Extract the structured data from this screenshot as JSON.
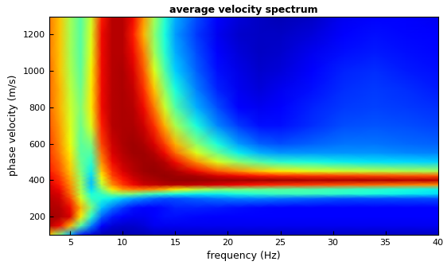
{
  "chart_data": {
    "type": "heatmap",
    "title": "average velocity spectrum",
    "x_label": "frequency (Hz)",
    "y_label": "phase velocity (m/s)",
    "color": "jet",
    "clim": [
      0,
      1
    ],
    "x": [
      3,
      4,
      5,
      6,
      7,
      8,
      9,
      10,
      11,
      12,
      13,
      14,
      15,
      17,
      19,
      21,
      23,
      25,
      28,
      31,
      34,
      37,
      40
    ],
    "y": [
      100,
      150,
      200,
      250,
      300,
      325,
      350,
      375,
      400,
      425,
      450,
      500,
      550,
      600,
      700,
      800,
      900,
      1000,
      1100,
      1200,
      1300
    ],
    "cells": [
      [
        0.7,
        0.5,
        0.3,
        0.15,
        0.08,
        0.05,
        0.04,
        0.04,
        0.05,
        0.05,
        0.06,
        0.06,
        0.06,
        0.06,
        0.06,
        0.06,
        0.06,
        0.06,
        0.06,
        0.06,
        0.06,
        0.06,
        0.06
      ],
      [
        0.95,
        0.9,
        0.72,
        0.45,
        0.25,
        0.12,
        0.08,
        0.07,
        0.07,
        0.08,
        0.1,
        0.1,
        0.1,
        0.1,
        0.1,
        0.1,
        0.1,
        0.1,
        0.1,
        0.1,
        0.1,
        0.1,
        0.1
      ],
      [
        0.97,
        0.96,
        0.92,
        0.66,
        0.4,
        0.22,
        0.15,
        0.12,
        0.1,
        0.1,
        0.12,
        0.14,
        0.14,
        0.13,
        0.12,
        0.12,
        0.12,
        0.12,
        0.12,
        0.12,
        0.12,
        0.12,
        0.12
      ],
      [
        0.96,
        0.95,
        0.9,
        0.72,
        0.5,
        0.32,
        0.24,
        0.18,
        0.14,
        0.12,
        0.12,
        0.14,
        0.16,
        0.16,
        0.15,
        0.14,
        0.13,
        0.12,
        0.12,
        0.12,
        0.12,
        0.12,
        0.12
      ],
      [
        0.95,
        0.93,
        0.84,
        0.62,
        0.42,
        0.38,
        0.36,
        0.32,
        0.28,
        0.25,
        0.22,
        0.2,
        0.2,
        0.22,
        0.24,
        0.25,
        0.25,
        0.24,
        0.22,
        0.2,
        0.2,
        0.2,
        0.2
      ],
      [
        0.94,
        0.92,
        0.8,
        0.58,
        0.38,
        0.42,
        0.5,
        0.52,
        0.5,
        0.45,
        0.42,
        0.4,
        0.38,
        0.36,
        0.36,
        0.38,
        0.4,
        0.42,
        0.42,
        0.4,
        0.38,
        0.36,
        0.34
      ],
      [
        0.93,
        0.9,
        0.78,
        0.56,
        0.34,
        0.5,
        0.66,
        0.75,
        0.78,
        0.78,
        0.76,
        0.72,
        0.66,
        0.58,
        0.52,
        0.5,
        0.48,
        0.46,
        0.44,
        0.42,
        0.4,
        0.38,
        0.36
      ],
      [
        0.92,
        0.88,
        0.76,
        0.55,
        0.32,
        0.58,
        0.76,
        0.85,
        0.9,
        0.93,
        0.94,
        0.95,
        0.95,
        0.94,
        0.92,
        0.9,
        0.88,
        0.86,
        0.84,
        0.82,
        0.8,
        0.78,
        0.76
      ],
      [
        0.9,
        0.86,
        0.74,
        0.54,
        0.32,
        0.62,
        0.8,
        0.88,
        0.92,
        0.95,
        0.96,
        0.97,
        0.98,
        0.98,
        0.97,
        0.97,
        0.97,
        0.97,
        0.96,
        0.96,
        0.96,
        0.95,
        0.95
      ],
      [
        0.9,
        0.84,
        0.72,
        0.52,
        0.34,
        0.66,
        0.84,
        0.9,
        0.94,
        0.96,
        0.97,
        0.98,
        0.97,
        0.96,
        0.92,
        0.9,
        0.88,
        0.86,
        0.85,
        0.84,
        0.83,
        0.82,
        0.82
      ],
      [
        0.88,
        0.82,
        0.7,
        0.5,
        0.36,
        0.7,
        0.86,
        0.92,
        0.95,
        0.97,
        0.98,
        0.97,
        0.96,
        0.9,
        0.82,
        0.76,
        0.7,
        0.66,
        0.62,
        0.6,
        0.58,
        0.56,
        0.55
      ],
      [
        0.86,
        0.8,
        0.68,
        0.48,
        0.4,
        0.76,
        0.9,
        0.94,
        0.96,
        0.97,
        0.97,
        0.95,
        0.9,
        0.76,
        0.62,
        0.52,
        0.45,
        0.4,
        0.38,
        0.36,
        0.35,
        0.34,
        0.33
      ],
      [
        0.85,
        0.77,
        0.66,
        0.46,
        0.45,
        0.8,
        0.92,
        0.95,
        0.97,
        0.97,
        0.95,
        0.9,
        0.8,
        0.62,
        0.48,
        0.36,
        0.3,
        0.27,
        0.27,
        0.27,
        0.27,
        0.26,
        0.25
      ],
      [
        0.84,
        0.76,
        0.64,
        0.46,
        0.5,
        0.84,
        0.93,
        0.96,
        0.97,
        0.96,
        0.92,
        0.84,
        0.72,
        0.52,
        0.38,
        0.28,
        0.22,
        0.2,
        0.22,
        0.24,
        0.24,
        0.23,
        0.22
      ],
      [
        0.82,
        0.74,
        0.62,
        0.48,
        0.62,
        0.88,
        0.95,
        0.96,
        0.96,
        0.93,
        0.86,
        0.72,
        0.56,
        0.38,
        0.26,
        0.18,
        0.14,
        0.14,
        0.17,
        0.2,
        0.21,
        0.2,
        0.19
      ],
      [
        0.8,
        0.72,
        0.6,
        0.5,
        0.66,
        0.9,
        0.95,
        0.96,
        0.95,
        0.9,
        0.78,
        0.6,
        0.45,
        0.3,
        0.2,
        0.12,
        0.1,
        0.12,
        0.16,
        0.18,
        0.19,
        0.18,
        0.17
      ],
      [
        0.8,
        0.72,
        0.58,
        0.48,
        0.66,
        0.9,
        0.95,
        0.96,
        0.94,
        0.86,
        0.7,
        0.52,
        0.38,
        0.25,
        0.16,
        0.1,
        0.08,
        0.1,
        0.14,
        0.17,
        0.18,
        0.17,
        0.15
      ],
      [
        0.8,
        0.7,
        0.56,
        0.46,
        0.65,
        0.9,
        0.95,
        0.96,
        0.92,
        0.82,
        0.62,
        0.45,
        0.33,
        0.22,
        0.14,
        0.09,
        0.07,
        0.08,
        0.12,
        0.16,
        0.17,
        0.15,
        0.14
      ],
      [
        0.78,
        0.7,
        0.55,
        0.45,
        0.63,
        0.9,
        0.95,
        0.95,
        0.9,
        0.78,
        0.55,
        0.4,
        0.3,
        0.2,
        0.12,
        0.08,
        0.06,
        0.07,
        0.1,
        0.14,
        0.15,
        0.14,
        0.13
      ],
      [
        0.78,
        0.7,
        0.55,
        0.45,
        0.62,
        0.9,
        0.95,
        0.95,
        0.88,
        0.72,
        0.52,
        0.38,
        0.28,
        0.18,
        0.1,
        0.07,
        0.06,
        0.06,
        0.08,
        0.12,
        0.14,
        0.13,
        0.12
      ],
      [
        0.78,
        0.7,
        0.55,
        0.45,
        0.6,
        0.88,
        0.95,
        0.95,
        0.9,
        0.75,
        0.55,
        0.4,
        0.3,
        0.2,
        0.12,
        0.08,
        0.06,
        0.05,
        0.06,
        0.1,
        0.12,
        0.12,
        0.1
      ]
    ],
    "xlim": [
      3,
      40
    ],
    "ylim": [
      100,
      1300
    ],
    "xticks": [
      5,
      10,
      15,
      20,
      25,
      30,
      35,
      40
    ],
    "yticks": [
      200,
      400,
      600,
      800,
      1000,
      1200
    ]
  }
}
